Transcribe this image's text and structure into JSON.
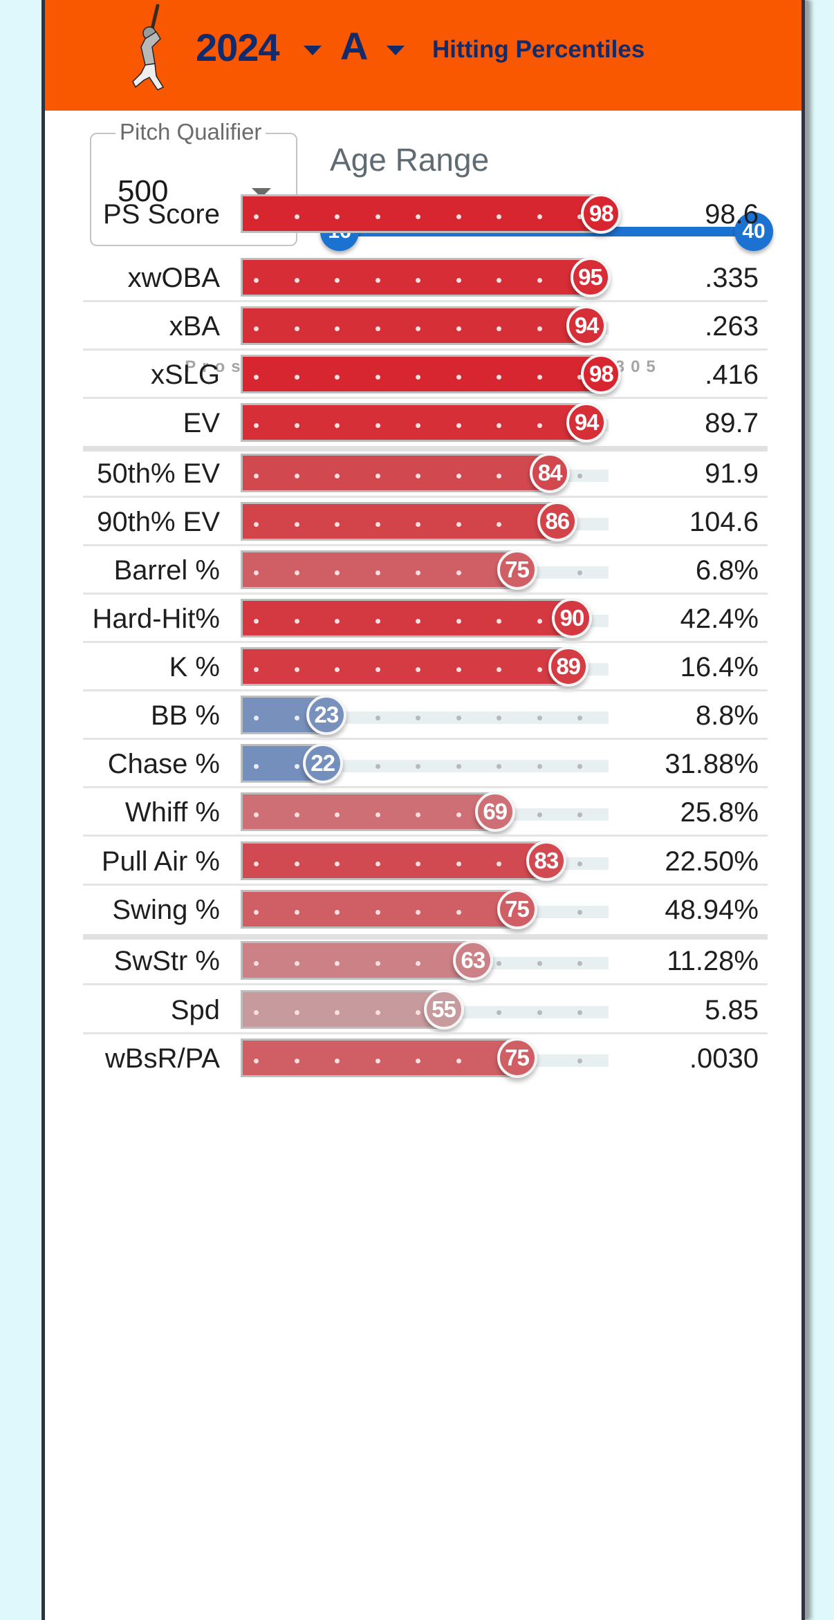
{
  "header": {
    "year": "2024",
    "level": "A",
    "title": "Hitting Percentiles",
    "batter_icon": "batter-silhouette-icon",
    "colors": {
      "background": "#f95700",
      "text": "#132a6b"
    }
  },
  "controls": {
    "pitch_qualifier": {
      "label": "Pitch Qualifier",
      "value": "500"
    },
    "age_range": {
      "label": "Age Range",
      "min": "16",
      "max": "40"
    }
  },
  "watermark": "ProspectSavant.com/player/800305",
  "chart_data": {
    "type": "bar",
    "title": "Hitting Percentiles",
    "xlabel": "",
    "ylabel": "",
    "xlim": [
      0,
      100
    ],
    "categories": [
      "PS Score",
      "xwOBA",
      "xBA",
      "xSLG",
      "EV",
      "50th% EV",
      "90th% EV",
      "Barrel %",
      "Hard-Hit%",
      "K %",
      "BB %",
      "Chase %",
      "Whiff %",
      "Pull Air %",
      "Swing %",
      "SwStr %",
      "Spd",
      "wBsR/PA"
    ],
    "percentiles": [
      98,
      95,
      94,
      98,
      94,
      84,
      86,
      75,
      90,
      89,
      23,
      22,
      69,
      83,
      75,
      63,
      55,
      75
    ],
    "stat_values": [
      "98.6",
      ".335",
      ".263",
      ".416",
      "89.7",
      "91.9",
      "104.6",
      "6.8%",
      "42.4%",
      "16.4%",
      "8.8%",
      "31.88%",
      "25.8%",
      "22.50%",
      "48.94%",
      "11.28%",
      "5.85",
      ".0030"
    ],
    "groups": [
      [
        0
      ],
      [
        1,
        2,
        3,
        4
      ],
      [
        5,
        6,
        7,
        8,
        9,
        10,
        11,
        12,
        13,
        14
      ],
      [
        15,
        16,
        17
      ]
    ],
    "color_scale": {
      "low": "#6f8dbd",
      "mid": "#c4b2b3",
      "high": "#d7262f"
    }
  },
  "rows": [
    {
      "label": "PS Score",
      "pct": "98",
      "value": "98.6"
    },
    {
      "label": "xwOBA",
      "pct": "95",
      "value": ".335"
    },
    {
      "label": "xBA",
      "pct": "94",
      "value": ".263"
    },
    {
      "label": "xSLG",
      "pct": "98",
      "value": ".416"
    },
    {
      "label": "EV",
      "pct": "94",
      "value": "89.7"
    },
    {
      "label": "50th% EV",
      "pct": "84",
      "value": "91.9"
    },
    {
      "label": "90th% EV",
      "pct": "86",
      "value": "104.6"
    },
    {
      "label": "Barrel %",
      "pct": "75",
      "value": "6.8%"
    },
    {
      "label": "Hard-Hit%",
      "pct": "90",
      "value": "42.4%"
    },
    {
      "label": "K %",
      "pct": "89",
      "value": "16.4%"
    },
    {
      "label": "BB %",
      "pct": "23",
      "value": "8.8%"
    },
    {
      "label": "Chase %",
      "pct": "22",
      "value": "31.88%"
    },
    {
      "label": "Whiff %",
      "pct": "69",
      "value": "25.8%"
    },
    {
      "label": "Pull Air %",
      "pct": "83",
      "value": "22.50%"
    },
    {
      "label": "Swing %",
      "pct": "75",
      "value": "48.94%"
    },
    {
      "label": "SwStr %",
      "pct": "63",
      "value": "11.28%"
    },
    {
      "label": "Spd",
      "pct": "55",
      "value": "5.85"
    },
    {
      "label": "wBsR/PA",
      "pct": "75",
      "value": ".0030"
    }
  ]
}
